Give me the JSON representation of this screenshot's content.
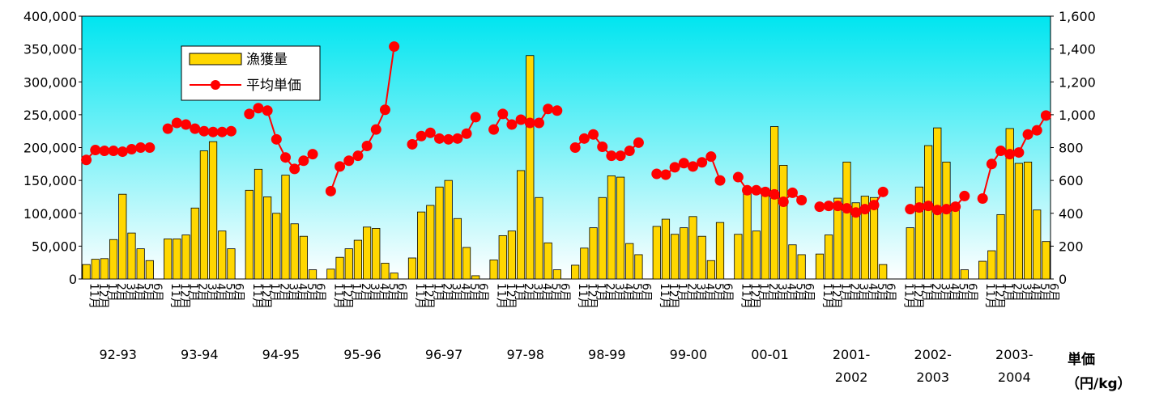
{
  "chart_data": {
    "type": "bar",
    "month_labels": [
      "11月",
      "12月",
      "1月",
      "2月",
      "3月",
      "4月",
      "5月",
      "6月"
    ],
    "seasons": [
      {
        "line1": "92-93",
        "line2": "",
        "catch": [
          22000,
          30000,
          31000,
          60000,
          129000,
          70000,
          46000,
          28000
        ],
        "price": [
          725,
          785,
          780,
          780,
          775,
          790,
          800,
          800
        ]
      },
      {
        "line1": "93-94",
        "line2": "",
        "catch": [
          61000,
          61000,
          67000,
          108000,
          195000,
          209000,
          73000,
          46000
        ],
        "price": [
          915,
          950,
          940,
          915,
          900,
          895,
          895,
          900
        ]
      },
      {
        "line1": "94-95",
        "line2": "",
        "catch": [
          135000,
          167000,
          125000,
          100000,
          158000,
          84000,
          65000,
          14000
        ],
        "price": [
          1005,
          1040,
          1025,
          850,
          740,
          670,
          720,
          760
        ]
      },
      {
        "line1": "95-96",
        "line2": "",
        "catch": [
          15000,
          33000,
          46000,
          59000,
          79000,
          77000,
          24000,
          9000
        ],
        "price": [
          535,
          685,
          720,
          750,
          810,
          910,
          1030,
          1415
        ]
      },
      {
        "line1": "96-97",
        "line2": "",
        "catch": [
          32000,
          102000,
          112000,
          140000,
          150000,
          92000,
          48000,
          5000
        ],
        "price": [
          820,
          870,
          890,
          855,
          850,
          855,
          885,
          985
        ]
      },
      {
        "line1": "97-98",
        "line2": "",
        "catch": [
          29000,
          66000,
          73000,
          165000,
          340000,
          124000,
          55000,
          14000
        ],
        "price": [
          910,
          1005,
          940,
          970,
          950,
          950,
          1035,
          1025
        ]
      },
      {
        "line1": "98-99",
        "line2": "",
        "catch": [
          21000,
          47000,
          78000,
          124000,
          157000,
          155000,
          54000,
          37000
        ],
        "price": [
          800,
          855,
          880,
          805,
          750,
          750,
          780,
          830
        ]
      },
      {
        "line1": "99-00",
        "line2": "",
        "catch": [
          80000,
          91000,
          68000,
          78000,
          95000,
          65000,
          28000,
          86000
        ],
        "price": [
          640,
          635,
          680,
          705,
          685,
          710,
          745,
          600
        ]
      },
      {
        "line1": "00-01",
        "line2": "",
        "catch": [
          68000,
          139000,
          73000,
          138000,
          232000,
          173000,
          52000,
          37000
        ],
        "price": [
          620,
          540,
          540,
          530,
          515,
          470,
          525,
          480
        ]
      },
      {
        "line1": "2001-",
        "line2": "2002",
        "catch": [
          38000,
          67000,
          123000,
          178000,
          116000,
          126000,
          124000,
          22000
        ],
        "price": [
          440,
          445,
          445,
          430,
          405,
          425,
          450,
          530
        ]
      },
      {
        "line1": "2002-",
        "line2": "2003",
        "catch": [
          0,
          78000,
          140000,
          203000,
          230000,
          178000,
          115000,
          14000
        ],
        "price": [
          null,
          425,
          435,
          445,
          420,
          425,
          440,
          505
        ]
      },
      {
        "line1": "2003-",
        "line2": "2004",
        "catch": [
          27000,
          43000,
          98000,
          229000,
          176000,
          178000,
          105000,
          57000
        ],
        "price": [
          490,
          700,
          780,
          760,
          770,
          880,
          905,
          995
        ]
      }
    ],
    "series": [
      {
        "name": "漁獲量",
        "axis": "left",
        "kind": "bar",
        "color": "#FFD700"
      },
      {
        "name": "平均単価",
        "axis": "right",
        "kind": "line",
        "color": "#FF0000"
      }
    ],
    "left_axis": {
      "min": 0,
      "max": 400000,
      "step": 50000
    },
    "right_axis": {
      "min": 0,
      "max": 1600,
      "step": 200,
      "label_line1": "単価",
      "label_line2": "（円/kg）"
    },
    "legend_placement": "top-left",
    "grid": false
  }
}
